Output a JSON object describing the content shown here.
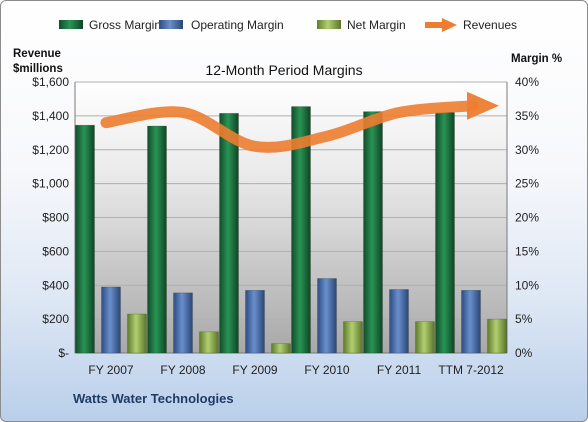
{
  "chart_data": {
    "type": "bar",
    "title": "12-Month Period Margins",
    "categories": [
      "FY 2007",
      "FY 2008",
      "FY 2009",
      "FY 2010",
      "FY 2011",
      "TTM 7-2012"
    ],
    "series": [
      {
        "name": "Gross Margin",
        "axis": "left",
        "values": [
          1345,
          1340,
          1415,
          1455,
          1425,
          1420
        ],
        "color": "#1f7a44"
      },
      {
        "name": "Operating Margin",
        "axis": "left",
        "values": [
          390,
          355,
          370,
          440,
          375,
          370
        ],
        "color": "#4a6fae"
      },
      {
        "name": "Net Margin",
        "axis": "left",
        "values": [
          230,
          125,
          55,
          185,
          185,
          200
        ],
        "color": "#8fb04f"
      },
      {
        "name": "Revenues",
        "type": "line",
        "axis": "right",
        "values": [
          34,
          35.5,
          30.5,
          32,
          35.5,
          36.5
        ],
        "color": "#ed7d31"
      }
    ],
    "y_left": {
      "label_line1": "Revenue",
      "label_line2": "$millions",
      "ylim": [
        0,
        1600
      ],
      "ticks": [
        0,
        200,
        400,
        600,
        800,
        1000,
        1200,
        1400,
        1600
      ],
      "tick_labels": [
        "$-",
        "$200",
        "$400",
        "$600",
        "$800",
        "$1,000",
        "$1,200",
        "$1,400",
        "$1,600"
      ]
    },
    "y_right": {
      "label": "Margin %",
      "ylim": [
        0,
        40
      ],
      "ticks": [
        0,
        5,
        10,
        15,
        20,
        25,
        30,
        35,
        40
      ],
      "tick_labels": [
        "0%",
        "5%",
        "10%",
        "15%",
        "20%",
        "25%",
        "30%",
        "35%",
        "40%"
      ]
    },
    "grid": true,
    "legend_position": "top"
  },
  "footer": "Watts Water Technologies"
}
